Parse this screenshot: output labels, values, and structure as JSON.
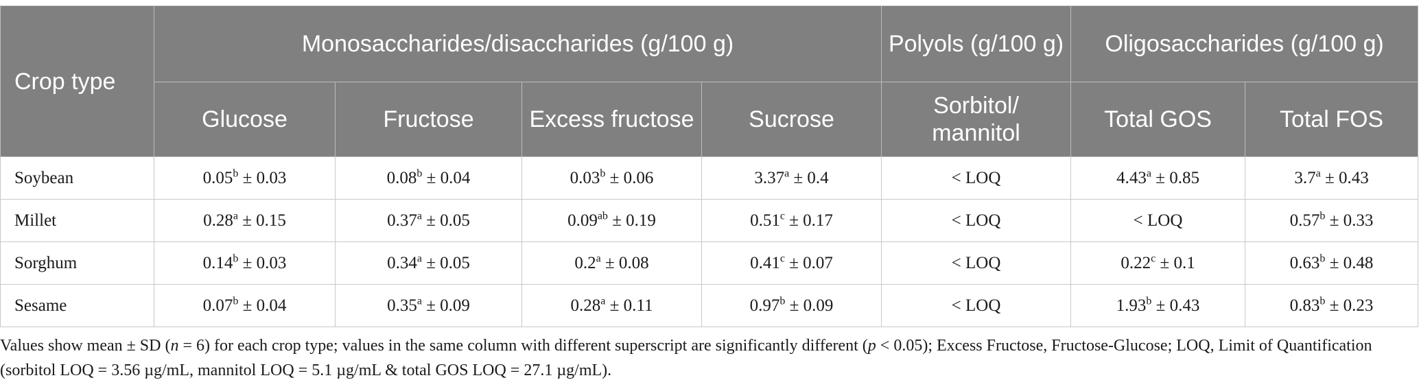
{
  "header": {
    "crop_type": "Crop type",
    "group_mono": "Monosaccharides/disaccharides (g/100 g)",
    "group_polyols": "Polyols (g/100 g)",
    "group_oligo": "Oligosaccharides (g/100 g)",
    "columns": [
      "Glucose",
      "Fructose",
      "Excess fructose",
      "Sucrose",
      "Sorbitol/ mannitol",
      "Total GOS",
      "Total FOS"
    ]
  },
  "rows": [
    {
      "crop": "Soybean",
      "cells": [
        {
          "v": "0.05",
          "s": "b",
          "e": " ± 0.03"
        },
        {
          "v": "0.08",
          "s": "b",
          "e": " ± 0.04"
        },
        {
          "v": "0.03",
          "s": "b",
          "e": " ± 0.06"
        },
        {
          "v": "3.37",
          "s": "a",
          "e": " ± 0.4"
        },
        {
          "v": "< LOQ",
          "s": "",
          "e": ""
        },
        {
          "v": "4.43",
          "s": "a",
          "e": " ± 0.85"
        },
        {
          "v": "3.7",
          "s": "a",
          "e": " ± 0.43"
        }
      ]
    },
    {
      "crop": "Millet",
      "cells": [
        {
          "v": "0.28",
          "s": "a",
          "e": " ± 0.15"
        },
        {
          "v": "0.37",
          "s": "a",
          "e": " ± 0.05"
        },
        {
          "v": "0.09",
          "s": "ab",
          "e": " ± 0.19"
        },
        {
          "v": "0.51",
          "s": "c",
          "e": " ± 0.17"
        },
        {
          "v": "< LOQ",
          "s": "",
          "e": ""
        },
        {
          "v": "< LOQ",
          "s": "",
          "e": ""
        },
        {
          "v": "0.57",
          "s": "b",
          "e": " ± 0.33"
        }
      ]
    },
    {
      "crop": "Sorghum",
      "cells": [
        {
          "v": "0.14",
          "s": "b",
          "e": " ± 0.03"
        },
        {
          "v": "0.34",
          "s": "a",
          "e": " ± 0.05"
        },
        {
          "v": "0.2",
          "s": "a",
          "e": " ± 0.08"
        },
        {
          "v": "0.41",
          "s": "c",
          "e": " ± 0.07"
        },
        {
          "v": "< LOQ",
          "s": "",
          "e": ""
        },
        {
          "v": "0.22",
          "s": "c",
          "e": " ± 0.1"
        },
        {
          "v": "0.63",
          "s": "b",
          "e": " ± 0.48"
        }
      ]
    },
    {
      "crop": "Sesame",
      "cells": [
        {
          "v": "0.07",
          "s": "b",
          "e": " ± 0.04"
        },
        {
          "v": "0.35",
          "s": "a",
          "e": " ± 0.09"
        },
        {
          "v": "0.28",
          "s": "a",
          "e": " ± 0.11"
        },
        {
          "v": "0.97",
          "s": "b",
          "e": " ± 0.09"
        },
        {
          "v": "< LOQ",
          "s": "",
          "e": ""
        },
        {
          "v": "1.93",
          "s": "b",
          "e": " ± 0.43"
        },
        {
          "v": "0.83",
          "s": "b",
          "e": " ± 0.23"
        }
      ]
    }
  ],
  "footnote": {
    "part1": "Values show mean ± SD (",
    "n": "n",
    "part2": " = 6) for each crop type; values in the same column with different superscript are significantly different (",
    "p": "p",
    "part3": " < 0.05); Excess Fructose, Fructose-Glucose; LOQ, Limit of Quantification (sorbitol LOQ = 3.56 µg/mL, mannitol LOQ = 5.1 µg/mL & total GOS LOQ = 27.1 µg/mL)."
  },
  "colors": {
    "header_bg": "#808080",
    "header_text": "#ffffff",
    "border": "#c8c8c8"
  }
}
